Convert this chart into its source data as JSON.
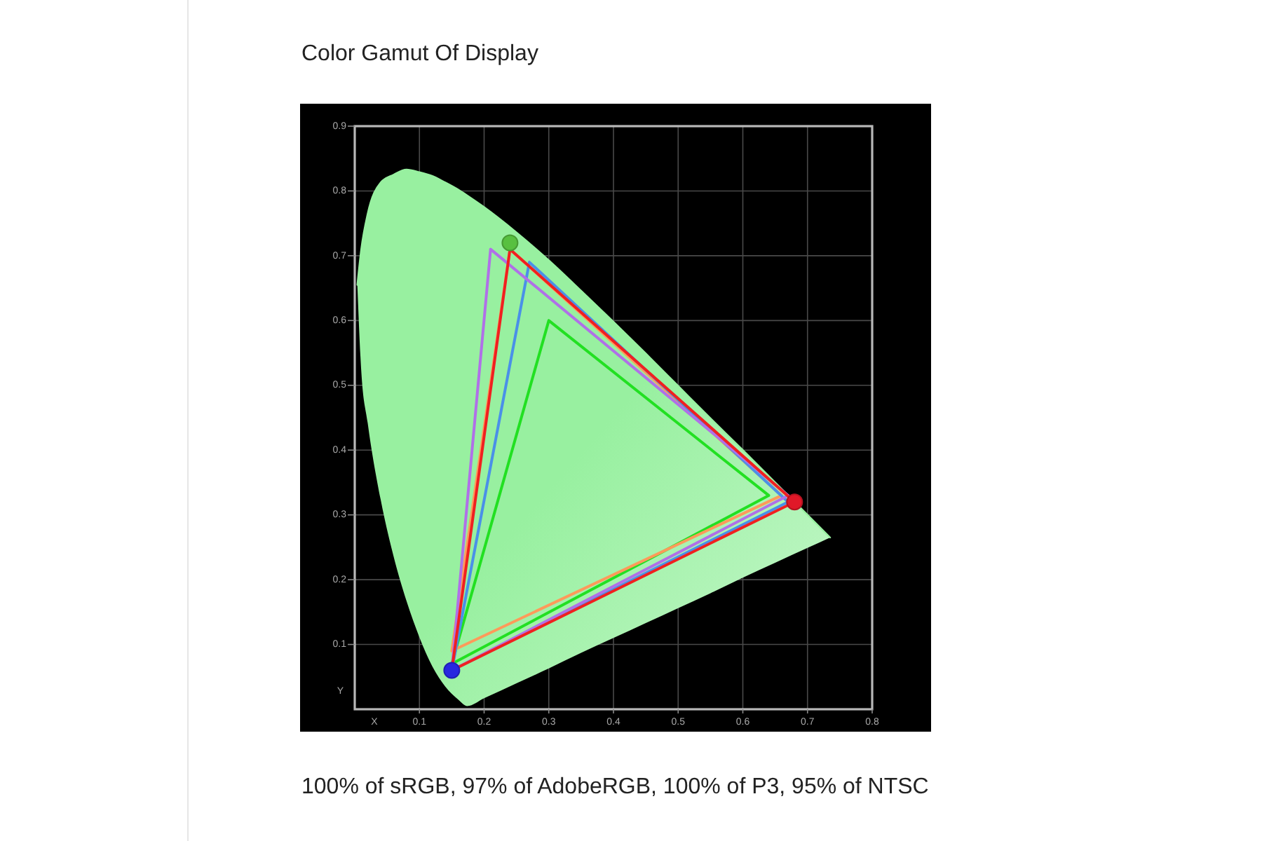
{
  "chart_data": {
    "type": "line",
    "title": "Color Gamut Of Display",
    "xlabel": "X",
    "ylabel": "Y",
    "xlim": [
      0,
      0.8
    ],
    "ylim": [
      0,
      0.9
    ],
    "xticks": [
      0.1,
      0.2,
      0.3,
      0.4,
      0.5,
      0.6,
      0.7,
      0.8
    ],
    "yticks": [
      0.1,
      0.2,
      0.3,
      0.4,
      0.5,
      0.6,
      0.7,
      0.8,
      0.9
    ],
    "grid": true,
    "annotations": [
      "100% of sRGB, 97% of AdobeRGB, 100% of P3, 95% of NTSC"
    ],
    "series": [
      {
        "color": "#98f0a0",
        "x": [
          0.004,
          0.01,
          0.02,
          0.04,
          0.06,
          0.08,
          0.1,
          0.12,
          0.14,
          0.16,
          0.174,
          0.2,
          0.25,
          0.3,
          0.35,
          0.4,
          0.45,
          0.5,
          0.55,
          0.6,
          0.65,
          0.7,
          0.735
        ],
        "values": [
          0.655,
          0.71,
          0.765,
          0.813,
          0.825,
          0.833,
          0.829,
          0.823,
          0.813,
          0.802,
          0.793,
          0.775,
          0.736,
          0.693,
          0.646,
          0.598,
          0.549,
          0.499,
          0.449,
          0.4,
          0.35,
          0.3,
          0.265
        ],
        "upper": [
          0.655,
          0.71,
          0.765,
          0.813,
          0.825,
          0.833,
          0.829,
          0.823,
          0.813,
          0.802,
          0.793,
          0.775,
          0.736,
          0.693,
          0.646,
          0.598,
          0.549,
          0.499,
          0.449,
          0.4,
          0.35,
          0.3,
          0.265
        ],
        "lower": [
          0.655,
          0.523,
          0.442,
          0.324,
          0.236,
          0.167,
          0.111,
          0.066,
          0.035,
          0.015,
          0.005,
          0.017,
          0.04,
          0.063,
          0.087,
          0.11,
          0.133,
          0.156,
          0.179,
          0.203,
          0.226,
          0.249,
          0.265
        ]
      },
      {
        "color": "#22e022",
        "x": [
          0.3,
          0.64,
          0.15,
          0.3
        ],
        "values": [
          0.6,
          0.33,
          0.07,
          0.6
        ]
      },
      {
        "color": "#ff9a5a",
        "x": [
          0.24,
          0.66,
          0.15,
          0.24
        ],
        "values": [
          0.71,
          0.33,
          0.09,
          0.71
        ]
      },
      {
        "color": "#4a90e8",
        "x": [
          0.27,
          0.67,
          0.15,
          0.27
        ],
        "values": [
          0.69,
          0.32,
          0.06,
          0.69
        ]
      },
      {
        "color": "#b070e8",
        "x": [
          0.21,
          0.67,
          0.15,
          0.21
        ],
        "values": [
          0.71,
          0.33,
          0.06,
          0.71
        ]
      },
      {
        "color": "#f02020",
        "x": [
          0.24,
          0.68,
          0.15,
          0.24
        ],
        "values": [
          0.71,
          0.32,
          0.06,
          0.71
        ]
      },
      {
        "type": "scatter",
        "marker": "circle",
        "x": [
          0.24,
          0.68,
          0.15
        ],
        "values": [
          0.72,
          0.32,
          0.06
        ],
        "colors": [
          "#58c040",
          "#e01828",
          "#2828e0"
        ]
      }
    ]
  }
}
